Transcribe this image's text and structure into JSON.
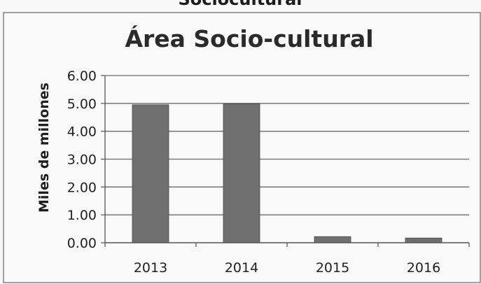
{
  "chart_data": {
    "type": "bar",
    "title": "Área Socio-cultural",
    "header_cut_text": "Sociocultural",
    "xlabel": "",
    "ylabel": "Miles de millones",
    "categories": [
      "2013",
      "2014",
      "2015",
      "2016"
    ],
    "values": [
      4.95,
      4.99,
      0.22,
      0.17
    ],
    "ylim": [
      0,
      6
    ],
    "yticks": [
      "0.00",
      "1.00",
      "2.00",
      "3.00",
      "4.00",
      "5.00",
      "6.00"
    ],
    "grid": true,
    "legend": "none",
    "bar_color": "#6f6f6f"
  }
}
